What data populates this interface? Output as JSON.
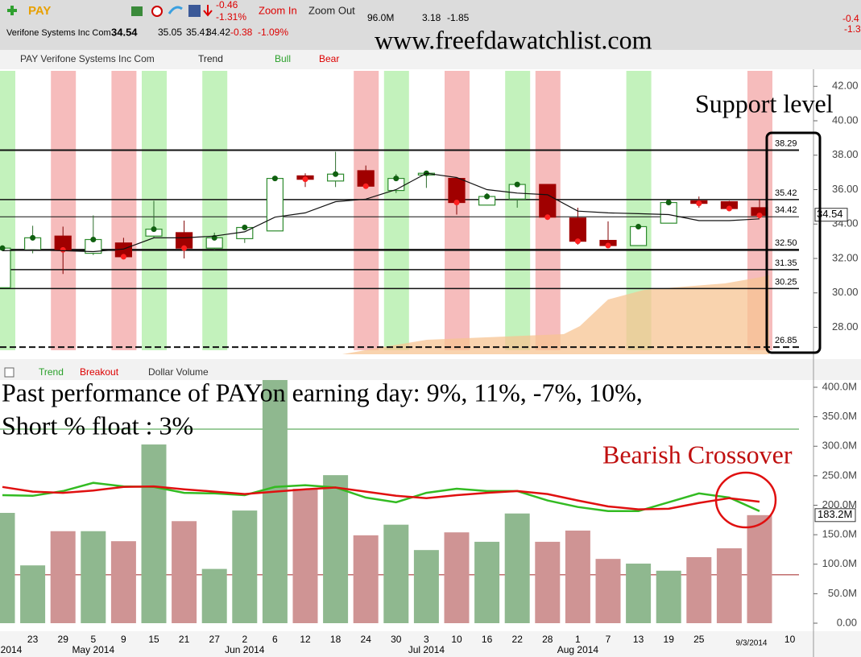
{
  "header": {
    "symbol": "PAY",
    "change": "-0.46",
    "change_pct": "-1.31%",
    "zoom_in": "Zoom In",
    "zoom_out": "Zoom Out",
    "volume": "96.0M",
    "stat1": "3.18",
    "stat2": "-1.85",
    "right_change": "-0.4",
    "right_change_pct": "-1.3",
    "company": "Verifone Systems Inc Com",
    "last": "34.54",
    "open": "35.05",
    "high": "35.41",
    "low": "34.42",
    "net": "-0.38",
    "net_pct": "-1.09%",
    "watermark": "www.freefdawatchlist.com"
  },
  "chart_data": [
    {
      "type": "candlestick",
      "toolbar_title": "PAY Verifone Systems Inc Com",
      "legend": [
        "Trend",
        "Bull",
        "Bear"
      ],
      "categories": [
        null,
        "23",
        "29",
        "5",
        "9",
        "15",
        "21",
        "27",
        "2",
        "6",
        "12",
        "18",
        "24",
        "30",
        "3",
        "10",
        "16",
        "22",
        "28",
        "1",
        "7",
        "13",
        "19",
        "25",
        null,
        "9/3/2014",
        "10"
      ],
      "months": [
        "2014",
        "May 2014",
        "Jun 2014",
        "Jul 2014",
        "Aug 2014"
      ],
      "open": [
        30.3,
        32.5,
        33.3,
        32.3,
        32.9,
        33.3,
        33.5,
        32.6,
        33.15,
        33.6,
        36.8,
        36.5,
        37.1,
        35.95,
        36.85,
        36.65,
        35.1,
        35.45,
        36.3,
        34.35,
        33.05,
        32.75,
        34.05,
        35.35,
        35.3,
        34.95,
        null
      ],
      "high": [
        32.6,
        33.9,
        33.85,
        34.5,
        33.2,
        35.35,
        34.2,
        33.5,
        33.95,
        36.65,
        36.95,
        38.2,
        37.4,
        36.9,
        37.0,
        36.65,
        35.8,
        36.4,
        36.3,
        34.95,
        34.15,
        33.85,
        35.25,
        35.6,
        35.35,
        35.45,
        null
      ],
      "low": [
        30.3,
        32.3,
        31.1,
        32.2,
        32.0,
        33.2,
        32.0,
        32.5,
        32.9,
        33.6,
        36.15,
        36.15,
        36.05,
        35.8,
        36.1,
        34.55,
        35.1,
        34.95,
        34.4,
        32.8,
        32.7,
        32.75,
        34.05,
        34.95,
        34.75,
        34.4,
        null
      ],
      "close": [
        32.6,
        33.2,
        32.5,
        33.1,
        32.1,
        33.7,
        32.6,
        33.2,
        33.8,
        36.65,
        36.6,
        36.9,
        36.2,
        36.65,
        36.95,
        35.25,
        35.6,
        36.3,
        34.4,
        33.0,
        32.75,
        33.85,
        35.25,
        35.2,
        34.9,
        34.5,
        null
      ],
      "trend": [
        32.45,
        32.5,
        32.45,
        32.4,
        32.55,
        33.2,
        33.2,
        33.3,
        33.55,
        34.4,
        34.65,
        35.3,
        35.45,
        36.0,
        36.95,
        36.7,
        36.0,
        35.8,
        35.7,
        34.75,
        34.65,
        34.6,
        34.55,
        34.2,
        34.2,
        34.3,
        null
      ],
      "up_color": "#2e8b2e",
      "down_color": "#a00000",
      "levels": [
        38.29,
        35.42,
        34.42,
        {
          "value": 32.5,
          "label": "32.50"
        },
        31.35,
        30.25,
        26.85
      ],
      "annotation": "Support level",
      "last_price": 34.54,
      "ylim": [
        26.2,
        42.9
      ],
      "yticks": [
        {
          "value": 28,
          "label": "28.00"
        },
        {
          "value": 30,
          "label": "30.00"
        },
        {
          "value": 32,
          "label": "32.00"
        },
        {
          "value": 34,
          "label": "34.00"
        },
        {
          "value": 36,
          "label": "36.00"
        },
        {
          "value": 38,
          "label": "38.00"
        },
        {
          "value": 40,
          "label": "40.00"
        },
        {
          "value": 42,
          "label": "42.00"
        }
      ]
    },
    {
      "type": "bar",
      "legend": [
        "Trend",
        "Breakout",
        "Dollar Volume"
      ],
      "series": [
        {
          "name": "Dollar Volume",
          "values": [
            187,
            98,
            156,
            156,
            139,
            303,
            173,
            92,
            191,
            430,
            228,
            251,
            149,
            167,
            124,
            154,
            138,
            186,
            138,
            157,
            109,
            101,
            89,
            112,
            127,
            183.2,
            null
          ]
        },
        {
          "name": "Trend",
          "color": "#33bb22",
          "values": [
            217,
            216,
            224,
            238,
            232,
            231,
            221,
            220,
            217,
            231,
            234,
            230,
            213,
            205,
            221,
            228,
            224,
            224,
            208,
            197,
            190,
            190,
            205,
            220,
            213,
            190,
            null
          ]
        },
        {
          "name": "Breakout",
          "color": "#e01010",
          "values": [
            231,
            223,
            221,
            225,
            231,
            232,
            227,
            223,
            219,
            223,
            227,
            230,
            223,
            216,
            212,
            217,
            221,
            224,
            219,
            208,
            198,
            193,
            194,
            204,
            212,
            206,
            null
          ]
        }
      ],
      "up_color": "#8fb88f",
      "down_color": "#cf9494",
      "reference_lines": [
        329,
        82
      ],
      "annotations": [
        "Past performance of PAYon earning day: 9%, 11%, -7%, 10%,",
        "Short % float : 3%",
        "Bearish Crossover"
      ],
      "last_value": {
        "value": 183.2,
        "label": "183.2M"
      },
      "ylim": [
        0,
        415
      ],
      "yticks": [
        {
          "value": 0,
          "label": "0.00"
        },
        {
          "value": 50,
          "label": "50.0M"
        },
        {
          "value": 100,
          "label": "100.0M"
        },
        {
          "value": 150,
          "label": "150.0M"
        },
        {
          "value": 200,
          "label": "200.0M"
        },
        {
          "value": 250,
          "label": "250.0M"
        },
        {
          "value": 300,
          "label": "300.0M"
        },
        {
          "value": 350,
          "label": "350.0M"
        },
        {
          "value": 400,
          "label": "400.0M"
        }
      ]
    }
  ]
}
